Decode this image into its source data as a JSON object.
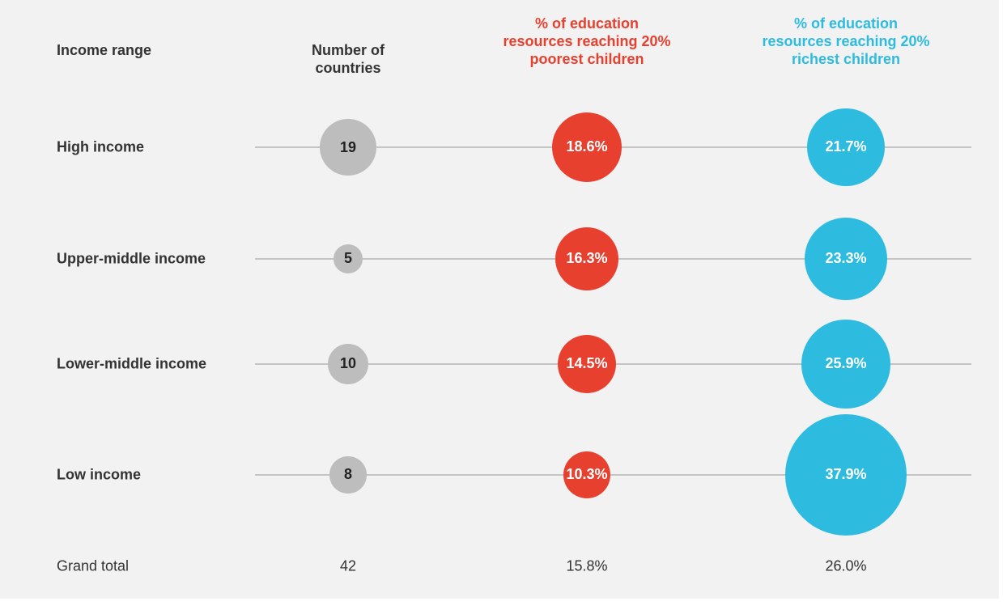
{
  "chart_data": {
    "type": "bubble",
    "row_header": "Income range",
    "categories": [
      "High income",
      "Upper-middle income",
      "Lower-middle income",
      "Low income"
    ],
    "series": [
      {
        "name": "Number of countries",
        "color": "#bdbdbd",
        "values": [
          19,
          5,
          10,
          8
        ],
        "total": 42
      },
      {
        "name": "% of education resources reaching 20% poorest children",
        "color": "#e8402f",
        "values": [
          18.6,
          16.3,
          14.5,
          10.3
        ],
        "value_labels": [
          "18.6%",
          "16.3%",
          "14.5%",
          "10.3%"
        ],
        "total": 15.8,
        "total_label": "15.8%"
      },
      {
        "name": "% of education resources reaching 20% richest children",
        "color": "#2ebbe0",
        "values": [
          21.7,
          23.3,
          25.9,
          37.9
        ],
        "value_labels": [
          "21.7%",
          "23.3%",
          "25.9%",
          "37.9%"
        ],
        "total": 26.0,
        "total_label": "26.0%"
      }
    ],
    "total_row_label": "Grand total"
  }
}
